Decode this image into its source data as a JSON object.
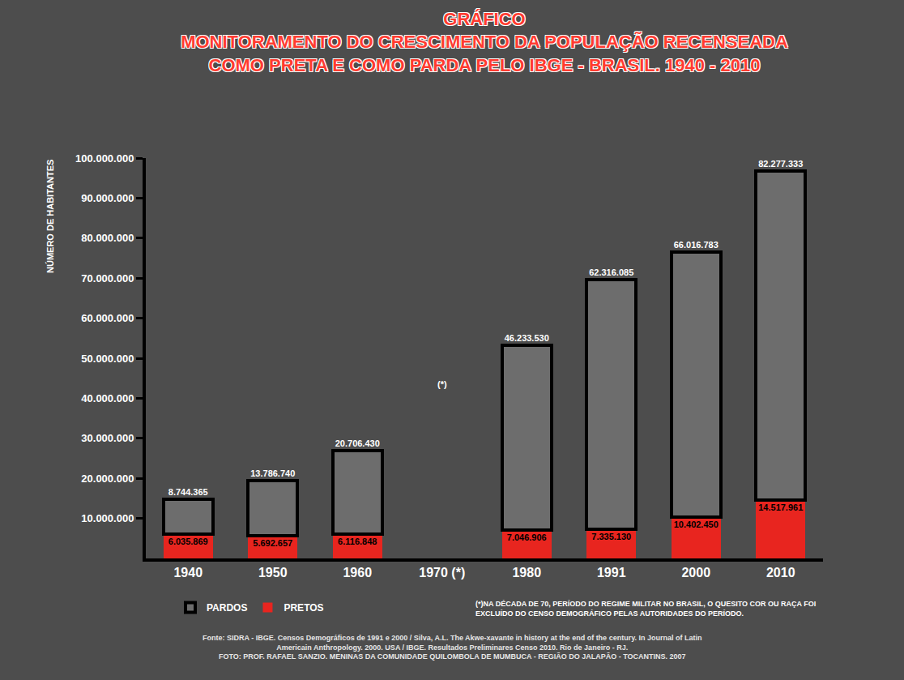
{
  "chart_data": {
    "type": "bar",
    "stacked": true,
    "title": "GRÁFICO\nMONITORAMENTO DO CRESCIMENTO DA POPULAÇÃO RECENSEADA\nCOMO PRETA E COMO PARDA PELO IBGE - BRASIL. 1940 - 2010",
    "ylabel": "NÚMERO DE HABITANTES",
    "categories": [
      "1940",
      "1950",
      "1960",
      "1970 (*)",
      "1980",
      "1991",
      "2000",
      "2010"
    ],
    "series": [
      {
        "name": "PRETOS",
        "color": "#e8251f",
        "values": [
          6035869,
          5692657,
          6116848,
          null,
          7046906,
          7335130,
          10402450,
          14517961
        ],
        "value_labels": [
          "6.035.869",
          "5.692.657",
          "6.116.848",
          null,
          "7.046.906",
          "7.335.130",
          "10.402.450",
          "14.517.961"
        ]
      },
      {
        "name": "PARDOS",
        "color": "#000000",
        "values": [
          8744365,
          13786740,
          20706430,
          null,
          46233530,
          62316085,
          66016783,
          82277333
        ],
        "value_labels": [
          "8.744.365",
          "13.786.740",
          "20.706.430",
          null,
          "46.233.530",
          "62.316.085",
          "66.016.783",
          "82.277.333"
        ]
      }
    ],
    "ylim": [
      0,
      100000000
    ],
    "yticks": [
      {
        "value": 10000000,
        "label": "10.000.000"
      },
      {
        "value": 20000000,
        "label": "20.000.000"
      },
      {
        "value": 30000000,
        "label": "30.000.000"
      },
      {
        "value": 40000000,
        "label": "40.000.000"
      },
      {
        "value": 50000000,
        "label": "50.000.000"
      },
      {
        "value": 60000000,
        "label": "60.000.000"
      },
      {
        "value": 70000000,
        "label": "70.000.000"
      },
      {
        "value": 80000000,
        "label": "80.000.000"
      },
      {
        "value": 90000000,
        "label": "90.000.000"
      },
      {
        "value": 100000000,
        "label": "100.000.000"
      }
    ],
    "data_labels": true,
    "grid": false,
    "legend": "bottom",
    "annotations": [
      {
        "text": "(*)",
        "x": "1970 (*)"
      }
    ],
    "footnote": "(*)NA DÉCADA DE 70, PERÍODO DO REGIME MILITAR NO BRASIL, O QUESITO COR OU RAÇA FOI EXCLUÍDO DO CENSO DEMOGRÁFICO PELAS AUTORIDADES DO PERÍODO.",
    "source": [
      "Fonte: SIDRA - IBGE. Censos Demográficos de 1991 e 2000 / Silva, A.L. The Akwe-xavante in history at the end of the century. In Journal of Latin Americain Anthropology. 2000. USA / IBGE. Resultados Preliminares Censo 2010. Rio de Janeiro - RJ.",
      "FOTO: PROF. RAFAEL SANZIO. MENINAS DA COMUNIDADE QUILOMBOLA DE MUMBUCA - REGIÃO DO JALAPÃO - TOCANTINS. 2007"
    ]
  }
}
